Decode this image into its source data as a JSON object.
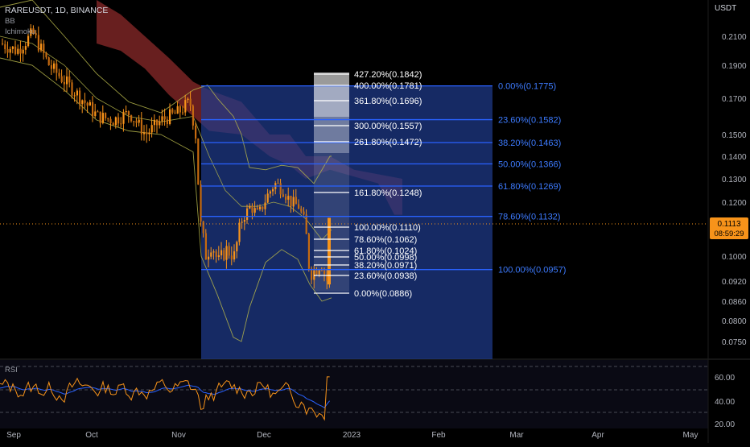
{
  "header": {
    "symbol_line": "RAREUSDT, 1D, BINANCE",
    "indicator_1": "BB",
    "indicator_2": "Ichimoku",
    "currency": "USDT"
  },
  "price_axis": {
    "ticks": [
      "0.2100",
      "0.1900",
      "0.1700",
      "0.1500",
      "0.1400",
      "0.1300",
      "0.1200",
      "0.1000",
      "0.0920",
      "0.0860",
      "0.0800",
      "0.0750"
    ],
    "current_price": "0.1113",
    "countdown": "08:59:29"
  },
  "time_axis": {
    "labels": [
      "Sep",
      "Oct",
      "Nov",
      "Dec",
      "2023",
      "Feb",
      "Mar",
      "Apr",
      "May"
    ]
  },
  "fib_retracement": {
    "levels": [
      "0.00%(0.1775)",
      "23.60%(0.1582)",
      "38.20%(0.1463)",
      "50.00%(0.1366)",
      "61.80%(0.1269)",
      "78.60%(0.1132)",
      "100.00%(0.0957)"
    ]
  },
  "fib_extension": {
    "levels": [
      "427.20%(0.1842)",
      "400.00%(0.1781)",
      "361.80%(0.1696)",
      "300.00%(0.1557)",
      "261.80%(0.1472)",
      "161.80%(0.1248)",
      "100.00%(0.1110)",
      "78.60%(0.1062)",
      "61.80%(0.1024)",
      "50.00%(0.0998)",
      "38.20%(0.0971)",
      "23.60%(0.0938)",
      "0.00%(0.0886)"
    ]
  },
  "rsi": {
    "label": "RSI",
    "ticks": [
      "60.00",
      "40.00",
      "20.00"
    ]
  },
  "colors": {
    "background": "#000000",
    "candle_up": "#f7931a",
    "candle_down": "#f7931a",
    "fib_line": "#2962ff",
    "fib_zone": "#1e3a8a",
    "cloud": "#8b2a2a",
    "bollinger": "#b5b54a",
    "rsi_line": "#f7931a",
    "rsi_ma": "#2962ff",
    "price_tag": "#f7931a"
  },
  "chart_data": {
    "type": "candlestick",
    "x_labels": [
      "Sep",
      "Oct",
      "Nov",
      "Dec",
      "2023",
      "Feb",
      "Mar",
      "Apr",
      "May"
    ],
    "close_approx": [
      0.205,
      0.198,
      0.19,
      0.18,
      0.175,
      0.17,
      0.16,
      0.158,
      0.155,
      0.165,
      0.17,
      0.16,
      0.125,
      0.105,
      0.1,
      0.098,
      0.11,
      0.118,
      0.122,
      0.125,
      0.12,
      0.115,
      0.112,
      0.11,
      0.105,
      0.095,
      0.093,
      0.094,
      0.09,
      0.1113
    ],
    "current_close": 0.1113,
    "fib_retracement_prices": [
      0.1775,
      0.1582,
      0.1463,
      0.1366,
      0.1269,
      0.1132,
      0.0957
    ],
    "fib_extension_prices": [
      0.1842,
      0.1781,
      0.1696,
      0.1557,
      0.1472,
      0.1248,
      0.111,
      0.1062,
      0.1024,
      0.0998,
      0.0971,
      0.0938,
      0.0886
    ],
    "rsi_levels": [
      70,
      50,
      30
    ],
    "rsi_ticks": [
      60,
      40,
      20
    ],
    "price_ticks": [
      0.21,
      0.19,
      0.17,
      0.15,
      0.14,
      0.13,
      0.12,
      0.1,
      0.092,
      0.086,
      0.08,
      0.075
    ],
    "rsi_approx": [
      55,
      52,
      48,
      45,
      42,
      50,
      46,
      38,
      44,
      48,
      60,
      52,
      32,
      40,
      45,
      48,
      55,
      50,
      48,
      46,
      42,
      35,
      30,
      32,
      28,
      34,
      55
    ]
  }
}
